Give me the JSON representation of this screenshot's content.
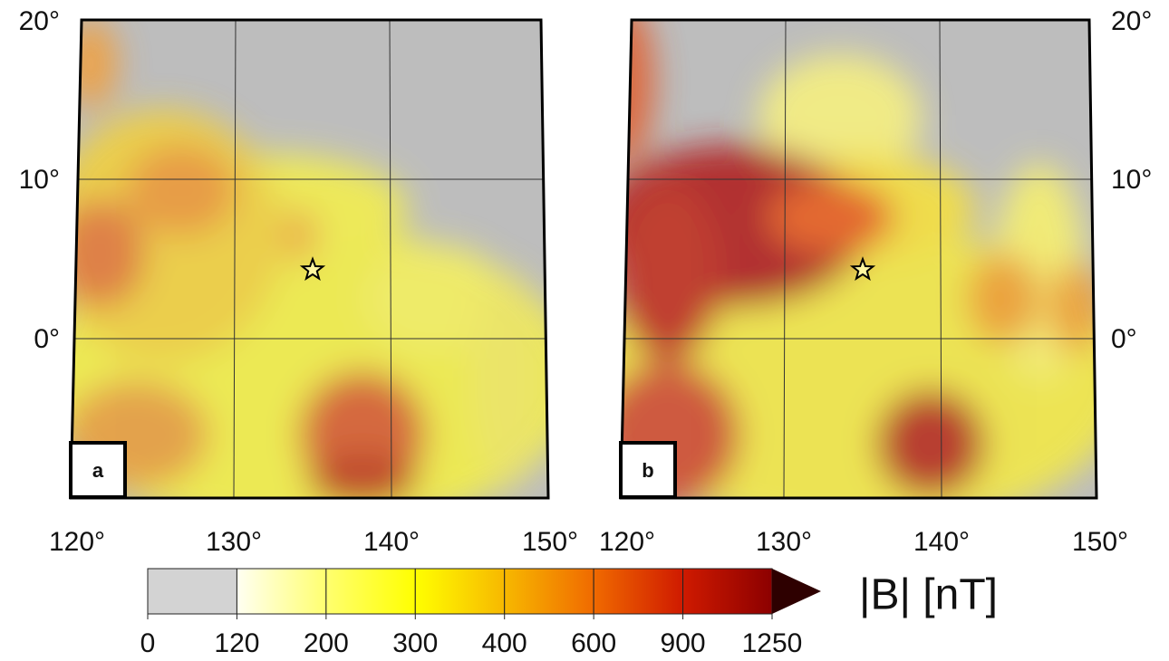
{
  "panels": [
    {
      "label": "a"
    },
    {
      "label": "b"
    }
  ],
  "lat_labels": [
    "20°",
    "10°",
    "0°"
  ],
  "lon_labels": [
    "120°",
    "130°",
    "140°",
    "150°"
  ],
  "colorbar": {
    "title": "|B| [nT]",
    "ticks": [
      "0",
      "120",
      "200",
      "300",
      "400",
      "600",
      "900",
      "1250"
    ],
    "colors": [
      "#d3d3d3",
      "#fffff2",
      "#ffff70",
      "#ffff00",
      "#f7b800",
      "#f06a00",
      "#cf1a00",
      "#8c0000",
      "#2e0000"
    ]
  }
}
